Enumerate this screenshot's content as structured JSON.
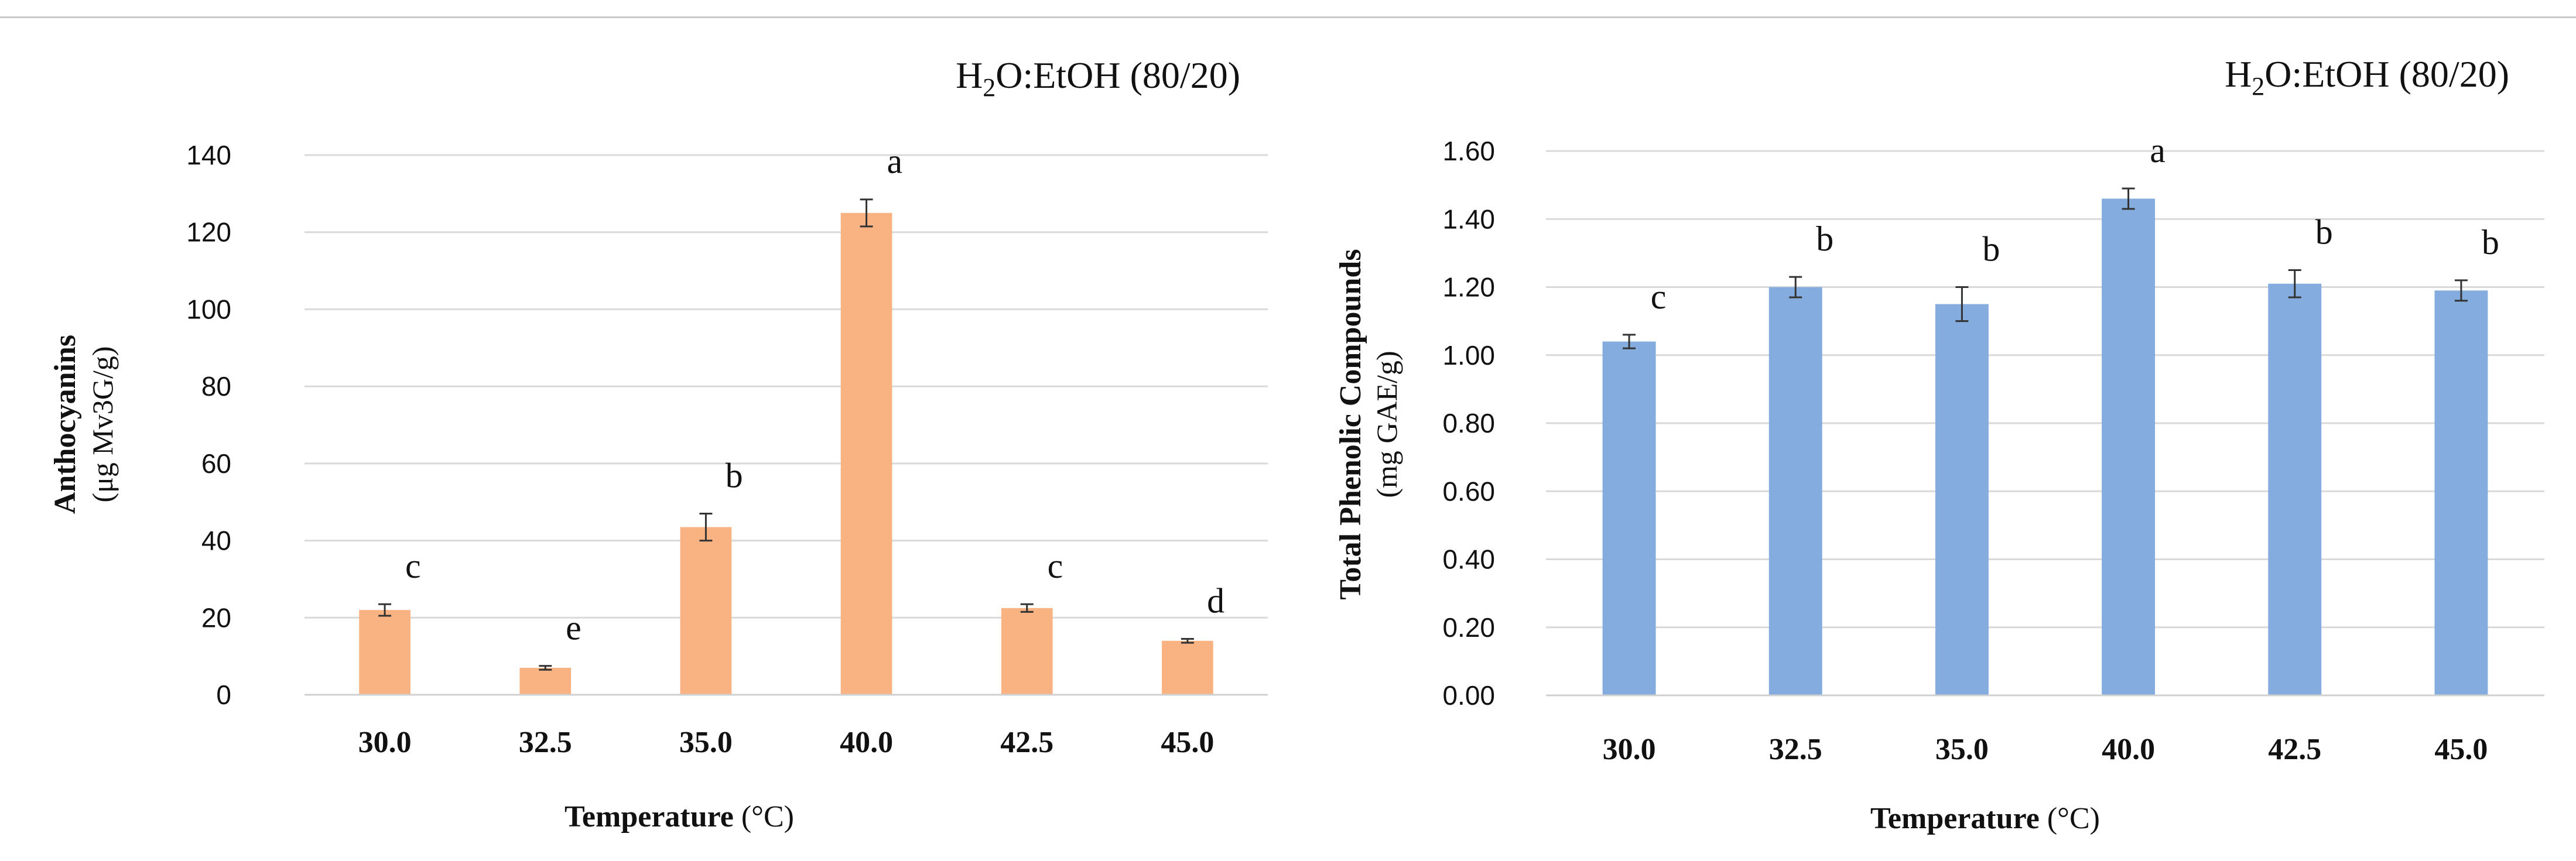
{
  "chart_data": [
    {
      "type": "bar",
      "title_prefix": "H",
      "title_sub": "2",
      "title_rest": "O:EtOH (80/20)",
      "ylabel_main": "Anthocyanins",
      "ylabel_units": "(μg Mv3G/g)",
      "xlabel_main": "Temperature",
      "xlabel_units": " (°C)",
      "categories": [
        "30.0",
        "32.5",
        "35.0",
        "40.0",
        "42.5",
        "45.0"
      ],
      "values": [
        22,
        7,
        43.5,
        125,
        22.5,
        14
      ],
      "errors": [
        1.5,
        0.5,
        3.5,
        3.5,
        1,
        0.5
      ],
      "letters": [
        "c",
        "e",
        "b",
        "a",
        "c",
        "d"
      ],
      "ylim": [
        0,
        140
      ],
      "yticks": [
        "0",
        "20",
        "40",
        "60",
        "80",
        "100",
        "120",
        "140"
      ],
      "color": "#F9B383",
      "grid": true
    },
    {
      "type": "bar",
      "title_prefix": "H",
      "title_sub": "2",
      "title_rest": "O:EtOH (80/20)",
      "ylabel_main": "Total Phenolic Compounds",
      "ylabel_units": "(mg GAE/g)",
      "xlabel_main": "Temperature",
      "xlabel_units": " (°C)",
      "categories": [
        "30.0",
        "32.5",
        "35.0",
        "40.0",
        "42.5",
        "45.0"
      ],
      "values": [
        1.04,
        1.2,
        1.15,
        1.46,
        1.21,
        1.19
      ],
      "errors": [
        0.02,
        0.03,
        0.05,
        0.03,
        0.04,
        0.03
      ],
      "letters": [
        "c",
        "b",
        "b",
        "a",
        "b",
        "b"
      ],
      "ylim": [
        0,
        1.6
      ],
      "yticks": [
        "0.00",
        "0.20",
        "0.40",
        "0.60",
        "0.80",
        "1.00",
        "1.20",
        "1.40",
        "1.60"
      ],
      "color": "#84ACDE",
      "grid": true
    }
  ]
}
